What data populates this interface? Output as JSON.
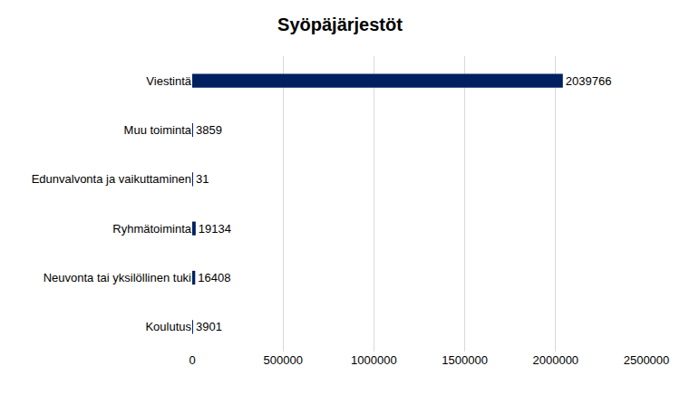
{
  "chart_data": {
    "type": "bar",
    "title": "Syöpäjärjestöt",
    "orientation": "horizontal",
    "categories": [
      "Viestintä",
      "Muu toiminta",
      "Edunvalvonta ja vaikuttaminen",
      "Ryhmätoiminta",
      "Neuvonta tai yksilöllinen tuki",
      "Koulutus"
    ],
    "values": [
      2039766,
      3859,
      31,
      19134,
      16408,
      3901
    ],
    "color": "#002060",
    "xlim": [
      0,
      2500000
    ],
    "xticks": [
      0,
      500000,
      1000000,
      1500000,
      2000000,
      2500000
    ],
    "grid": true,
    "data_labels": true
  }
}
